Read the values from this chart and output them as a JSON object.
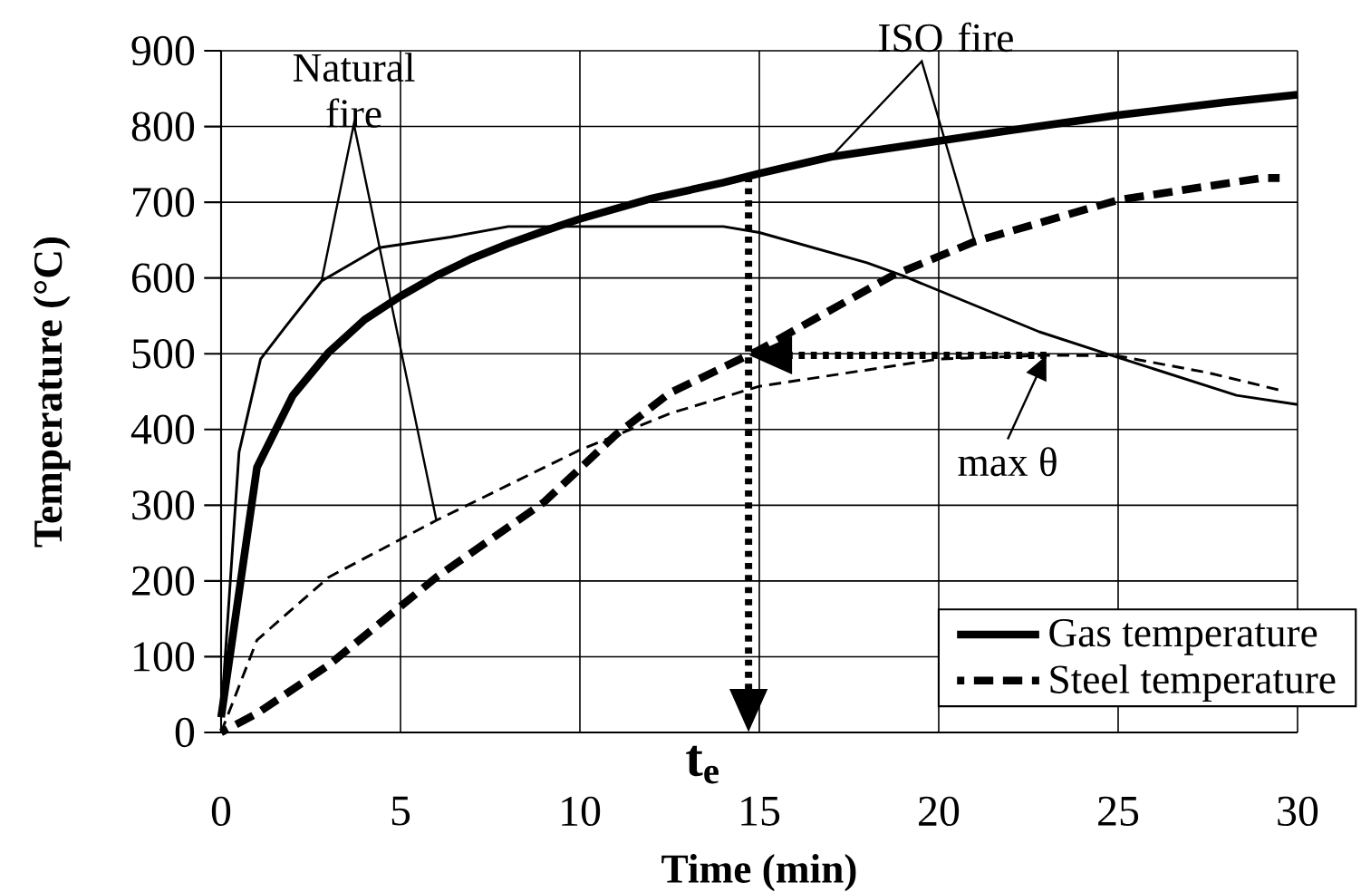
{
  "chart_data": {
    "type": "line",
    "xlabel": "Time (min)",
    "ylabel": "Temperature (°C)",
    "xlim": [
      0,
      30
    ],
    "ylim": [
      0,
      900
    ],
    "xticks": [
      0,
      5,
      10,
      15,
      20,
      25,
      30
    ],
    "yticks": [
      0,
      100,
      200,
      300,
      400,
      500,
      600,
      700,
      800,
      900
    ],
    "grid": true,
    "legend": "bottom right",
    "series": [
      {
        "name": "Gas temperature",
        "color": "#000000",
        "line_style": "solid",
        "x": [
          0,
          1,
          2,
          3,
          4,
          5,
          6,
          7,
          8,
          9,
          10,
          12,
          14,
          15,
          17,
          20,
          22,
          25,
          28,
          30
        ],
        "values": [
          20,
          350,
          445,
          502,
          545,
          576,
          603,
          626,
          645,
          662,
          678,
          705,
          726,
          738,
          760,
          781,
          795,
          815,
          832,
          842
        ]
      },
      {
        "name": "Steel temperature",
        "color": "#000000",
        "line_style": "dashed",
        "x": [
          0,
          1,
          3,
          6,
          9,
          11,
          12.5,
          15,
          18.7,
          21,
          25,
          29,
          29.5
        ],
        "values": [
          0,
          25,
          89,
          205,
          304,
          393,
          448,
          505,
          603,
          648,
          703,
          732,
          732
        ]
      },
      {
        "color": "#000000",
        "line_style": "solid",
        "x": [
          0,
          0.5,
          1.1,
          1.8,
          2.8,
          4.4,
          6.4,
          8,
          10,
          14,
          15,
          18,
          19,
          22.8,
          25,
          28.3,
          30
        ],
        "values": [
          20,
          370,
          493,
          536,
          596,
          640,
          654,
          668,
          668,
          668,
          660,
          620,
          603,
          529,
          495,
          445,
          433
        ]
      },
      {
        "color": "#000000",
        "line_style": "dashed",
        "x": [
          0,
          1,
          3,
          6,
          10,
          12.5,
          15,
          20,
          23,
          25,
          27.5,
          29.5
        ],
        "values": [
          0,
          122,
          205,
          280,
          373,
          421,
          457,
          493,
          498,
          497,
          475,
          452
        ]
      }
    ],
    "annotations": [
      "Natural fire",
      "ISO fire",
      {
        "text": "max θ",
        "x": 23,
        "y": 498
      }
    ],
    "ref_lines": [
      {
        "axis": "x",
        "value": 14.7,
        "label": "t$_{e}$",
        "line_style": "dotted"
      }
    ]
  }
}
